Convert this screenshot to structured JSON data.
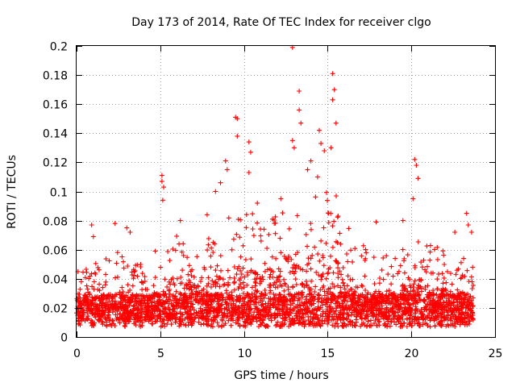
{
  "chart_data": {
    "type": "scatter",
    "title": "Day 173 of 2014, Rate Of TEC Index for receiver clgo",
    "xlabel": "GPS time / hours",
    "ylabel": "ROTI / TECUs",
    "xlim": [
      0,
      25
    ],
    "ylim": [
      0,
      0.2
    ],
    "xticks": [
      0,
      5,
      10,
      15,
      20,
      25
    ],
    "yticks": [
      0,
      0.02,
      0.04,
      0.06,
      0.08,
      0.1,
      0.12,
      0.14,
      0.16,
      0.18,
      0.2
    ],
    "x_tick_labels": [
      "0",
      "5",
      "10",
      "15",
      "20",
      "25"
    ],
    "y_tick_labels": [
      "0",
      "0.02",
      "0.04",
      "0.06",
      "0.08",
      "0.1",
      "0.12",
      "0.14",
      "0.16",
      "0.18",
      "0.2"
    ],
    "grid": true,
    "marker": "plus",
    "color": "#ff0000",
    "x_range_of_data": [
      0,
      23.7
    ],
    "envelope": {
      "hours": [
        0,
        1,
        2,
        2.5,
        3,
        4,
        4.5,
        5,
        5.5,
        6,
        7,
        8,
        8.5,
        9,
        9.5,
        10,
        10.5,
        11,
        12,
        12.5,
        13,
        14,
        14.5,
        15,
        15.5,
        16,
        17,
        18,
        19,
        20,
        20.5,
        21,
        22,
        23,
        23.7
      ],
      "max_roti": [
        0.046,
        0.05,
        0.055,
        0.06,
        0.055,
        0.05,
        0.035,
        0.06,
        0.065,
        0.07,
        0.065,
        0.07,
        0.075,
        0.085,
        0.09,
        0.095,
        0.085,
        0.08,
        0.09,
        0.105,
        0.095,
        0.1,
        0.105,
        0.11,
        0.1,
        0.08,
        0.065,
        0.055,
        0.06,
        0.065,
        0.07,
        0.065,
        0.06,
        0.055,
        0.05
      ]
    },
    "outliers": [
      {
        "x": 0.9,
        "y": 0.077
      },
      {
        "x": 1.0,
        "y": 0.069
      },
      {
        "x": 2.3,
        "y": 0.078
      },
      {
        "x": 3.0,
        "y": 0.075
      },
      {
        "x": 3.2,
        "y": 0.072
      },
      {
        "x": 4.7,
        "y": 0.059
      },
      {
        "x": 5.1,
        "y": 0.111
      },
      {
        "x": 5.1,
        "y": 0.107
      },
      {
        "x": 5.2,
        "y": 0.103
      },
      {
        "x": 5.15,
        "y": 0.094
      },
      {
        "x": 6.2,
        "y": 0.08
      },
      {
        "x": 7.8,
        "y": 0.084
      },
      {
        "x": 8.3,
        "y": 0.1
      },
      {
        "x": 8.6,
        "y": 0.106
      },
      {
        "x": 8.9,
        "y": 0.121
      },
      {
        "x": 9.0,
        "y": 0.115
      },
      {
        "x": 9.5,
        "y": 0.151
      },
      {
        "x": 9.6,
        "y": 0.15
      },
      {
        "x": 9.6,
        "y": 0.138
      },
      {
        "x": 10.3,
        "y": 0.134
      },
      {
        "x": 10.4,
        "y": 0.127
      },
      {
        "x": 10.3,
        "y": 0.113
      },
      {
        "x": 10.8,
        "y": 0.092
      },
      {
        "x": 11.7,
        "y": 0.081
      },
      {
        "x": 12.2,
        "y": 0.095
      },
      {
        "x": 12.9,
        "y": 0.199
      },
      {
        "x": 13.3,
        "y": 0.169
      },
      {
        "x": 13.3,
        "y": 0.156
      },
      {
        "x": 13.4,
        "y": 0.147
      },
      {
        "x": 12.9,
        "y": 0.135
      },
      {
        "x": 13.0,
        "y": 0.13
      },
      {
        "x": 13.8,
        "y": 0.115
      },
      {
        "x": 14.0,
        "y": 0.121
      },
      {
        "x": 14.5,
        "y": 0.142
      },
      {
        "x": 14.6,
        "y": 0.133
      },
      {
        "x": 14.8,
        "y": 0.128
      },
      {
        "x": 15.3,
        "y": 0.181
      },
      {
        "x": 15.4,
        "y": 0.17
      },
      {
        "x": 15.3,
        "y": 0.163
      },
      {
        "x": 15.5,
        "y": 0.147
      },
      {
        "x": 15.2,
        "y": 0.13
      },
      {
        "x": 14.4,
        "y": 0.11
      },
      {
        "x": 17.9,
        "y": 0.079
      },
      {
        "x": 20.2,
        "y": 0.122
      },
      {
        "x": 20.3,
        "y": 0.118
      },
      {
        "x": 20.4,
        "y": 0.109
      },
      {
        "x": 20.1,
        "y": 0.095
      },
      {
        "x": 19.5,
        "y": 0.08
      },
      {
        "x": 22.6,
        "y": 0.072
      },
      {
        "x": 23.3,
        "y": 0.085
      },
      {
        "x": 23.4,
        "y": 0.077
      },
      {
        "x": 23.6,
        "y": 0.072
      }
    ]
  }
}
